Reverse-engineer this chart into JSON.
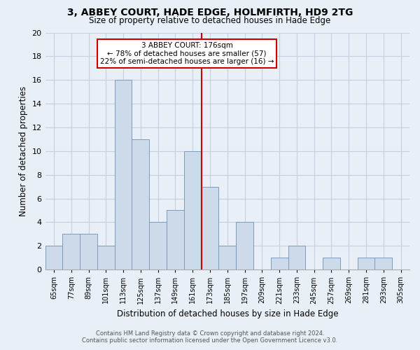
{
  "title": "3, ABBEY COURT, HADE EDGE, HOLMFIRTH, HD9 2TG",
  "subtitle": "Size of property relative to detached houses in Hade Edge",
  "xlabel": "Distribution of detached houses by size in Hade Edge",
  "ylabel": "Number of detached properties",
  "bin_labels": [
    "65sqm",
    "77sqm",
    "89sqm",
    "101sqm",
    "113sqm",
    "125sqm",
    "137sqm",
    "149sqm",
    "161sqm",
    "173sqm",
    "185sqm",
    "197sqm",
    "209sqm",
    "221sqm",
    "233sqm",
    "245sqm",
    "257sqm",
    "269sqm",
    "281sqm",
    "293sqm",
    "305sqm"
  ],
  "bin_starts": [
    65,
    77,
    89,
    101,
    113,
    125,
    137,
    149,
    161,
    173,
    185,
    197,
    209,
    221,
    233,
    245,
    257,
    269,
    281,
    293,
    305
  ],
  "bin_width": 12,
  "counts": [
    2,
    3,
    3,
    2,
    16,
    11,
    4,
    5,
    10,
    7,
    2,
    4,
    0,
    1,
    2,
    0,
    1,
    0,
    1,
    1,
    0
  ],
  "bar_color": "#cddaea",
  "bar_edge_color": "#7a9bbf",
  "reference_line_x": 173,
  "reference_line_color": "#cc0000",
  "annotation_title": "3 ABBEY COURT: 176sqm",
  "annotation_line1": "← 78% of detached houses are smaller (57)",
  "annotation_line2": "22% of semi-detached houses are larger (16) →",
  "annotation_box_color": "#ffffff",
  "annotation_box_edge_color": "#cc0000",
  "ylim": [
    0,
    20
  ],
  "yticks": [
    0,
    2,
    4,
    6,
    8,
    10,
    12,
    14,
    16,
    18,
    20
  ],
  "grid_color": "#c5cfe0",
  "background_color": "#e8eff7",
  "footnote1": "Contains HM Land Registry data © Crown copyright and database right 2024.",
  "footnote2": "Contains public sector information licensed under the Open Government Licence v3.0."
}
